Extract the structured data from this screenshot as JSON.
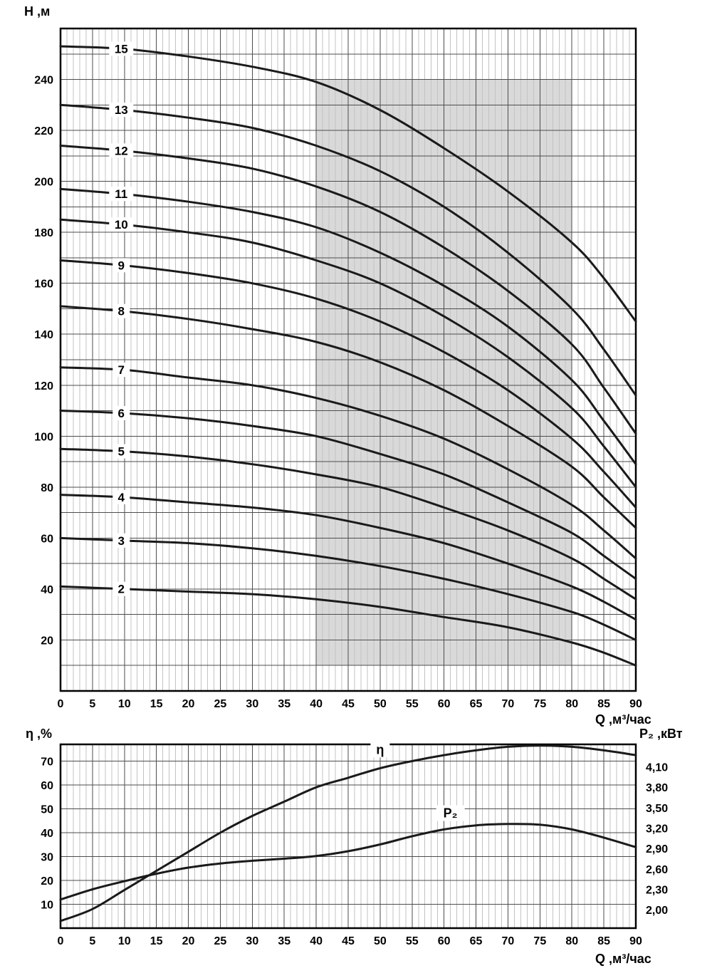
{
  "colors": {
    "background": "#ffffff",
    "curve": "#1a1a1a",
    "grid_major": "#4d4d4d",
    "grid_minor": "#c3c3c3",
    "border": "#000000",
    "highlight": "#d9d9d9"
  },
  "chart_data": [
    {
      "type": "line",
      "ylabel": "H ,м",
      "xlabel": "Q ,м³/час",
      "xlim": [
        0,
        90
      ],
      "ylim": [
        0,
        260
      ],
      "x_ticks": [
        0,
        5,
        10,
        15,
        20,
        25,
        30,
        35,
        40,
        45,
        50,
        55,
        60,
        65,
        70,
        75,
        80,
        85,
        90
      ],
      "y_ticks": [
        20,
        40,
        60,
        80,
        100,
        120,
        140,
        160,
        180,
        200,
        220,
        240
      ],
      "x_minor_step": 1,
      "y_grid_step": 10,
      "highlight_region": {
        "x": [
          40,
          80
        ],
        "y": [
          10,
          240
        ]
      },
      "series_label_q": 9.5,
      "x": [
        0,
        10,
        20,
        30,
        40,
        50,
        60,
        70,
        80,
        85,
        90
      ],
      "series": [
        {
          "name": "15",
          "y": [
            253,
            252,
            249,
            245,
            239,
            228,
            213,
            196,
            176,
            162,
            145
          ]
        },
        {
          "name": "13",
          "y": [
            230,
            228,
            225,
            221,
            214,
            204,
            190,
            172,
            150,
            134,
            116
          ]
        },
        {
          "name": "12",
          "y": [
            214,
            212,
            209,
            205,
            198,
            188,
            174,
            157,
            136,
            119,
            101
          ]
        },
        {
          "name": "11",
          "y": [
            197,
            195,
            192,
            188,
            182,
            172,
            159,
            143,
            122,
            106,
            89
          ]
        },
        {
          "name": "10",
          "y": [
            185,
            183,
            180,
            176,
            169,
            160,
            147,
            131,
            111,
            96,
            80
          ]
        },
        {
          "name": "9",
          "y": [
            169,
            167,
            164,
            160,
            154,
            145,
            133,
            118,
            99,
            86,
            72
          ]
        },
        {
          "name": "8",
          "y": [
            151,
            149,
            146,
            142,
            137,
            129,
            118,
            104,
            88,
            76,
            64
          ]
        },
        {
          "name": "7",
          "y": [
            127,
            126,
            123,
            120,
            115,
            108,
            99,
            87,
            73,
            63,
            52
          ]
        },
        {
          "name": "6",
          "y": [
            110,
            109,
            107,
            104,
            100,
            93,
            85,
            74,
            62,
            53,
            44
          ]
        },
        {
          "name": "5",
          "y": [
            95,
            94,
            92,
            89,
            85,
            80,
            72,
            63,
            52,
            44,
            36
          ]
        },
        {
          "name": "4",
          "y": [
            77,
            76,
            74,
            72,
            69,
            64,
            58,
            50,
            41,
            35,
            28
          ]
        },
        {
          "name": "3",
          "y": [
            60,
            59,
            58,
            56,
            53,
            49,
            44,
            38,
            31,
            26,
            20
          ]
        },
        {
          "name": "2",
          "y": [
            41,
            40,
            39,
            38,
            36,
            33,
            29,
            25,
            19,
            15,
            10
          ]
        }
      ]
    },
    {
      "type": "line",
      "ylabel_left": "η ,%",
      "ylabel_right": "P₂ ,кВт",
      "xlabel": "Q ,м³/час",
      "xlim": [
        0,
        90
      ],
      "ylim_left": [
        0,
        77
      ],
      "ylim_right": [
        1.73,
        4.43
      ],
      "x_ticks": [
        0,
        5,
        10,
        15,
        20,
        25,
        30,
        35,
        40,
        45,
        50,
        55,
        60,
        65,
        70,
        75,
        80,
        85,
        90
      ],
      "left_ticks": [
        10,
        20,
        30,
        40,
        50,
        60,
        70
      ],
      "right_ticks": {
        "values": [
          2.0,
          2.3,
          2.6,
          2.9,
          3.2,
          3.5,
          3.8,
          4.1
        ],
        "labels": [
          "2,00",
          "2,30",
          "2,60",
          "2,90",
          "3,20",
          "3,50",
          "3,80",
          "4,10"
        ]
      },
      "x_minor_step": 1,
      "x": [
        0,
        5,
        10,
        15,
        20,
        25,
        30,
        35,
        40,
        45,
        50,
        55,
        60,
        65,
        70,
        75,
        80,
        85,
        90
      ],
      "series": [
        {
          "name": "η",
          "axis": "left",
          "y": [
            3,
            8,
            16,
            24,
            32,
            40,
            47,
            53,
            59,
            63,
            67,
            70,
            72.5,
            74.5,
            76,
            76.5,
            76,
            74.5,
            72.5
          ],
          "label": {
            "q": 50,
            "v": 74.8
          }
        },
        {
          "name": "P₂",
          "axis": "right",
          "y": [
            2.15,
            2.3,
            2.42,
            2.53,
            2.62,
            2.68,
            2.72,
            2.75,
            2.79,
            2.86,
            2.96,
            3.08,
            3.18,
            3.24,
            3.26,
            3.25,
            3.18,
            3.06,
            2.92
          ],
          "label": {
            "q": 61,
            "v": 3.42
          }
        }
      ]
    }
  ]
}
